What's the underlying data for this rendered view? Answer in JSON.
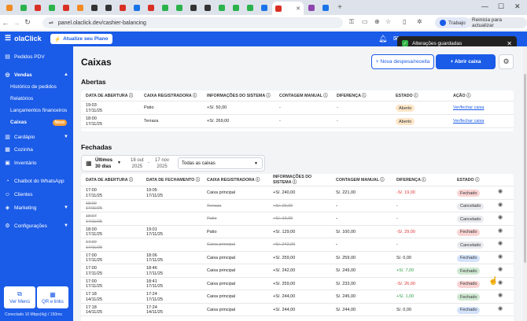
{
  "browser": {
    "url": "panel.olaclick.dev/cashier-balancing",
    "profile": "Trabajo",
    "restart": "Reinicia para actualizar"
  },
  "app": {
    "logo": "olaClick",
    "upgrade": "Atualize seu Plano"
  },
  "toast": {
    "text": "Alterações guardadas"
  },
  "sidebar": {
    "items": [
      {
        "label": "Pedidos PDV",
        "icon": "pos-icon"
      },
      {
        "label": "Vendas",
        "icon": "sales-icon"
      },
      {
        "label": "Cardápio",
        "icon": "menu-icon"
      },
      {
        "label": "Cozinha",
        "icon": "kitchen-icon"
      },
      {
        "label": "Inventário",
        "icon": "inventory-icon"
      },
      {
        "label": "Chatbot do WhatsApp",
        "icon": "whatsapp-icon"
      },
      {
        "label": "Clientes",
        "icon": "clients-icon"
      },
      {
        "label": "Marketing",
        "icon": "marketing-icon"
      },
      {
        "label": "Configurações",
        "icon": "settings-icon"
      }
    ],
    "sub": [
      "Histórico de pedidos",
      "Relatórios",
      "Lançamentos financeiros",
      "Caixas"
    ],
    "badge": "Novo",
    "ver_menu": "Ver Menú",
    "qr": "QR e links",
    "connection": "Conectado 10 Mbps(4g) / 150ms"
  },
  "main": {
    "title": "Caixas",
    "btn_nueva": "+ Nova despesa/receita",
    "btn_abrir": "+ Abrir caixa",
    "abertas": {
      "title": "Abertas",
      "headers": [
        "DATA DE ABERTURA",
        "CAIXA REGISTRADORA",
        "INFORMAÇÕES DO SISTEMA",
        "CONTAGEM MANUAL",
        "DIFERENÇA",
        "ESTADO",
        "AÇÃO"
      ],
      "rows": [
        {
          "date": "19:03",
          "day": "17/11/25",
          "caixa": "Patio",
          "sistema": "+S/. 50,00",
          "manual": "-",
          "dif": "-",
          "estado": "Aberto",
          "acao": "Ver/fechar caixa"
        },
        {
          "date": "18:00",
          "day": "17/11/25",
          "caixa": "Terraza",
          "sistema": "+S/. 269,00",
          "manual": "-",
          "dif": "-",
          "estado": "Aberto",
          "acao": "Ver/fechar caixa"
        }
      ]
    },
    "fechadas": {
      "title": "Fechadas",
      "filter": {
        "label1": "Últimos",
        "label2": "30 dias",
        "from1": "18 out",
        "from2": "2025",
        "sep": "-",
        "to1": "17 nov",
        "to2": "2025",
        "select": "Todas as caixas"
      },
      "headers": [
        "DATA DE ABERTURA",
        "DATA DE FECHAMENTO",
        "CAIXA REGISTRADORA",
        "INFORMAÇÕES DO SISTEMA",
        "CONTAGEM MANUAL",
        "DIFERENÇA",
        "ESTADO"
      ],
      "rows": [
        {
          "open": "17:00",
          "oday": "17/11/25",
          "close": "19:05",
          "cday": "17/11/25",
          "caixa": "Caixa principal",
          "sistema": "+S/. 240,00",
          "manual": "S/. 221,00",
          "dif": "-S/. 19,00",
          "difc": "red",
          "estado": "Fechado",
          "bs": "b-fechado",
          "strike": false
        },
        {
          "open": "18:00",
          "oday": "17/11/25",
          "close": "",
          "cday": "",
          "caixa": "Terraza",
          "sistema": "+S/. 20,00",
          "manual": "-",
          "dif": "-",
          "difc": "",
          "estado": "Cancelado",
          "bs": "b-cancel",
          "strike": true
        },
        {
          "open": "18:07",
          "oday": "17/11/25",
          "close": "",
          "cday": "",
          "caixa": "Patio",
          "sistema": "+S/. 10,00",
          "manual": "-",
          "dif": "-",
          "difc": "",
          "estado": "Cancelado",
          "bs": "b-cancel",
          "strike": true
        },
        {
          "open": "18:00",
          "oday": "17/11/25",
          "close": "19:01",
          "cday": "17/11/25",
          "caixa": "Patio",
          "sistema": "+S/. 129,00",
          "manual": "S/. 100,00",
          "dif": "-S/. 29,00",
          "difc": "red",
          "estado": "Fechado",
          "bs": "b-fechado",
          "strike": false
        },
        {
          "open": "17:00",
          "oday": "17/11/25",
          "close": "",
          "cday": "",
          "caixa": "Caixa principal",
          "sistema": "+S/. 242,00",
          "manual": "-",
          "dif": "-",
          "difc": "",
          "estado": "Cancelado",
          "bs": "b-cancel",
          "strike": true
        },
        {
          "open": "17:00",
          "oday": "17/11/25",
          "close": "18:06",
          "cday": "17/11/25",
          "caixa": "Caixa principal",
          "sistema": "+S/. 259,00",
          "manual": "S/. 259,00",
          "dif": "S/. 0,00",
          "difc": "",
          "estado": "Fechado",
          "bs": "b-fechado-b",
          "strike": false
        },
        {
          "open": "17:00",
          "oday": "17/11/25",
          "close": "18:46",
          "cday": "17/11/25",
          "caixa": "Caixa principal",
          "sistema": "+S/. 242,00",
          "manual": "S/. 249,00",
          "dif": "+S/. 7,00",
          "difc": "green",
          "estado": "Fechado",
          "bs": "b-fechado-g",
          "strike": false
        },
        {
          "open": "17:00",
          "oday": "17/11/25",
          "close": "18:41",
          "cday": "17/11/25",
          "caixa": "Caixa principal",
          "sistema": "+S/. 259,00",
          "manual": "S/. 233,00",
          "dif": "-S/. 26,00",
          "difc": "red",
          "estado": "Fechado",
          "bs": "b-fechado",
          "strike": false
        },
        {
          "open": "17:18",
          "oday": "14/11/25",
          "close": "17:24",
          "cday": "17/11/25",
          "caixa": "Caixa principal",
          "sistema": "+S/. 244,00",
          "manual": "S/. 245,00",
          "dif": "+S/. 1,00",
          "difc": "green",
          "estado": "Fechado",
          "bs": "b-fechado-g",
          "strike": false
        },
        {
          "open": "17:18",
          "oday": "14/11/25",
          "close": "17:24",
          "cday": "14/11/25",
          "caixa": "Caixa principal",
          "sistema": "+S/. 244,00",
          "manual": "S/. 244,00",
          "dif": "S/. 0,00",
          "difc": "",
          "estado": "Fechado",
          "bs": "b-fechado-b",
          "strike": false
        }
      ]
    }
  }
}
